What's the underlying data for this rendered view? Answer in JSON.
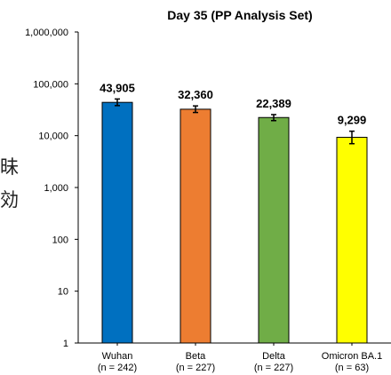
{
  "side_text": [
    "昧",
    "効"
  ],
  "chart_data": {
    "type": "bar",
    "title": "Day 35 (PP Analysis Set)",
    "xlabel": "",
    "ylabel": "",
    "y_scale": "log",
    "ylim": [
      1,
      1000000
    ],
    "y_ticks": [
      1,
      10,
      100,
      1000,
      10000,
      100000,
      1000000
    ],
    "y_tick_labels": [
      "1",
      "10",
      "100",
      "1,000",
      "10,000",
      "100,000",
      "1,000,000"
    ],
    "grid": false,
    "categories": [
      "Wuhan",
      "Beta",
      "Delta",
      "Omicron BA.1"
    ],
    "category_sublabels": [
      "(n = 242)",
      "(n = 227)",
      "(n = 227)",
      "(n = 63)"
    ],
    "values": [
      43905,
      32360,
      22389,
      9299
    ],
    "value_labels": [
      "43,905",
      "32,360",
      "22,389",
      "9,299"
    ],
    "error_low": [
      38000,
      28000,
      19500,
      7000
    ],
    "error_high": [
      51000,
      37500,
      25500,
      12200
    ],
    "colors": [
      "#0070c0",
      "#ed7d31",
      "#70ad47",
      "#ffff00"
    ]
  }
}
